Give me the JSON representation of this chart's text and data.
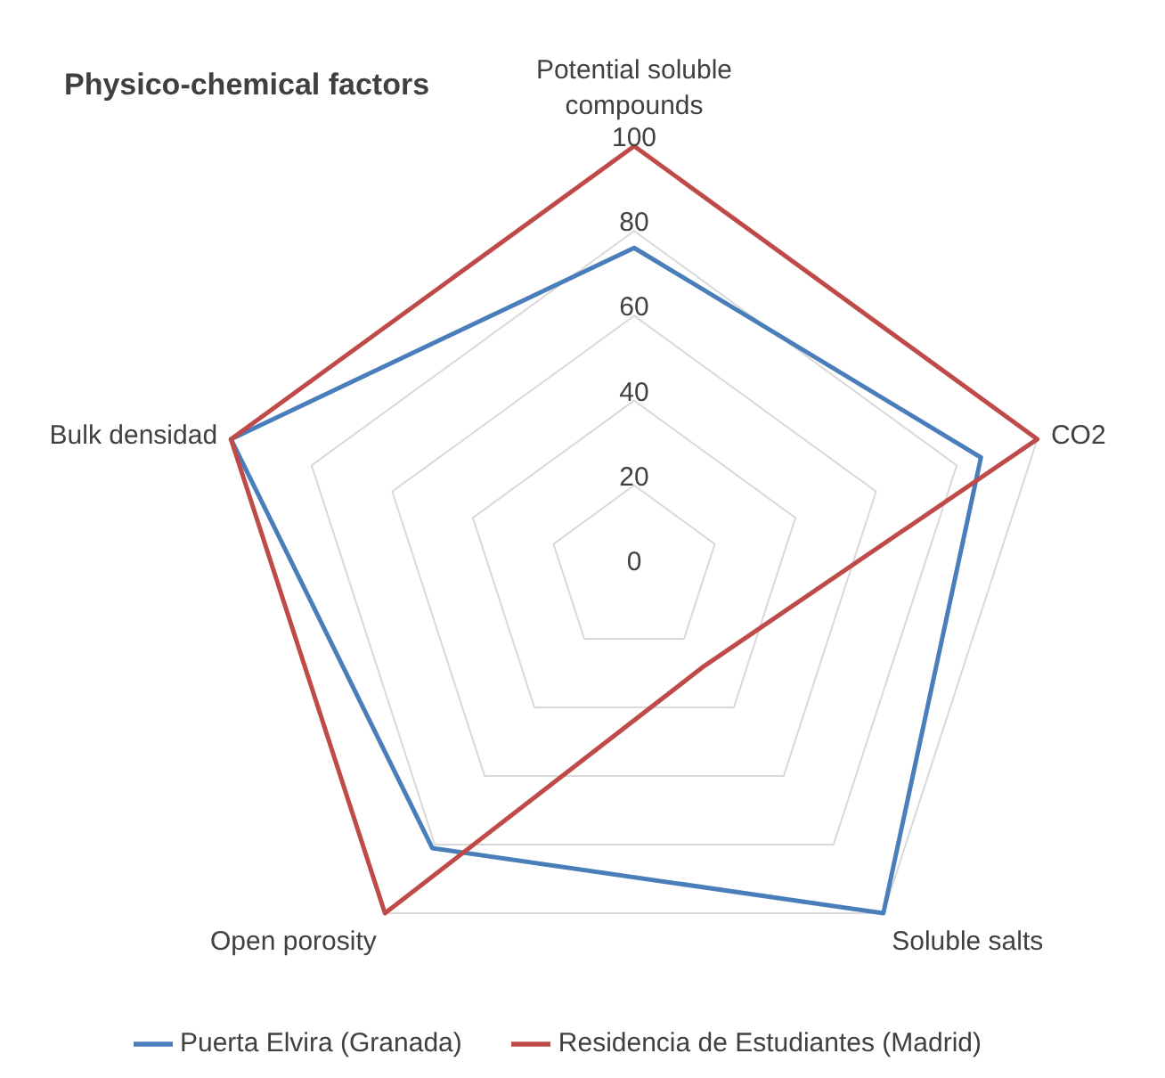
{
  "chart_data": {
    "type": "radar",
    "title": "Physico-chemical factors",
    "categories": [
      "Potential soluble compounds",
      "CO2",
      "Soluble salts",
      "Open porosity",
      "Bulk densidad"
    ],
    "series": [
      {
        "name": "Puerta Elvira (Granada)",
        "color": "#4a7ebb",
        "values": [
          76,
          86,
          100,
          81,
          100
        ]
      },
      {
        "name": "Residencia de Estudiantes (Madrid)",
        "color": "#be4b48",
        "values": [
          100,
          100,
          28,
          100,
          100
        ]
      }
    ],
    "ylim": [
      0,
      100
    ],
    "yticks": [
      0,
      20,
      40,
      60,
      80,
      100
    ],
    "grid": true,
    "legend": "bottom",
    "marker": "none"
  }
}
